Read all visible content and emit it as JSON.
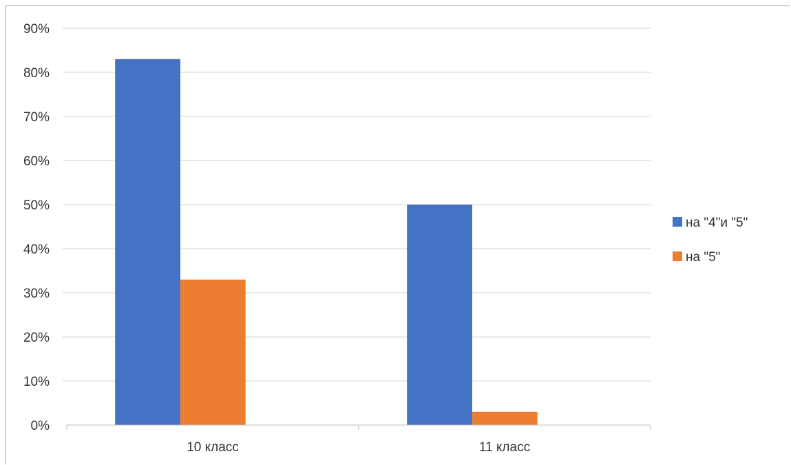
{
  "chart_data": {
    "type": "bar",
    "categories": [
      "10 класс",
      "11 класс"
    ],
    "series": [
      {
        "name": "на \"4\"и \"5\"",
        "values": [
          83,
          50
        ],
        "color": "#4472C4"
      },
      {
        "name": "на \"5\"",
        "values": [
          33,
          3
        ],
        "color": "#ED7D31"
      }
    ],
    "ylim": [
      0,
      90
    ],
    "ytick_step": 10,
    "ytick_format": "percent",
    "grid": true,
    "legend_position": "right"
  }
}
